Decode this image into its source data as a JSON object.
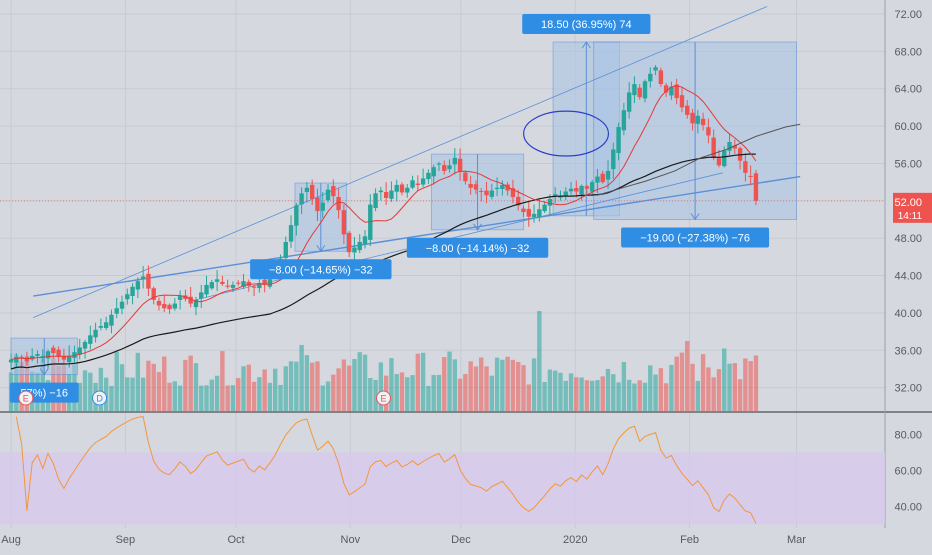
{
  "colors": {
    "background": "#d5d9df",
    "grid": "#c6cbd2",
    "up": "#26a69a",
    "down": "#ef5350",
    "ma_fast": "#e53935",
    "ma_slow": "#1a1a1a",
    "ma_long": "#555555",
    "trendline": "#5c8fd6",
    "measure_fill": "#a9c4e6",
    "label_blue": "#2f8de4",
    "rsi_line": "#f4963a",
    "rsi_band": "#d8c8ee",
    "price_tag": "#ef5350"
  },
  "chart_data": {
    "type": "candlestick",
    "price_axis": {
      "ticks": [
        "72.00",
        "68.00",
        "64.00",
        "60.00",
        "56.00",
        "52.00",
        "48.00",
        "44.00",
        "40.00",
        "36.00",
        "32.00"
      ],
      "range": [
        29.5,
        73.5
      ]
    },
    "rsi_axis": {
      "ticks": [
        "80.00",
        "60.00",
        "40.00"
      ],
      "range": [
        28,
        92
      ],
      "band": [
        30,
        70
      ]
    },
    "time_axis": {
      "labels": [
        "Aug",
        "Sep",
        "Oct",
        "Nov",
        "Dec",
        "2020",
        "Feb",
        "Mar"
      ],
      "label_days": [
        0,
        31,
        61,
        92,
        122,
        153,
        184,
        213
      ],
      "range": [
        -3,
        237
      ]
    },
    "last_price": {
      "value": "52.00",
      "countdown": "14:11"
    },
    "candles_daily_closes": [
      35.0,
      35.3,
      35.2,
      34.8,
      35.4,
      35.6,
      35.4,
      35.9,
      35.7,
      35.3,
      35.0,
      35.4,
      35.8,
      36.3,
      36.9,
      37.6,
      38.2,
      38.6,
      39.0,
      39.8,
      40.5,
      41.2,
      42.0,
      42.8,
      43.4,
      43.9,
      42.6,
      41.4,
      40.8,
      40.5,
      40.4,
      41.0,
      41.8,
      41.5,
      41.0,
      41.4,
      42.2,
      43.0,
      43.3,
      43.6,
      43.1,
      42.8,
      43.0,
      43.2,
      43.4,
      42.9,
      42.7,
      43.2,
      43.0,
      43.6,
      44.4,
      45.8,
      47.6,
      49.4,
      51.5,
      52.8,
      53.4,
      52.2,
      50.9,
      51.8,
      53.2,
      52.5,
      51.0,
      48.4,
      46.5,
      47.0,
      47.6,
      48.2,
      51.6,
      52.8,
      53.1,
      52.3,
      53.1,
      53.7,
      52.9,
      53.4,
      54.2,
      53.7,
      54.4,
      55.0,
      55.6,
      56.0,
      55.2,
      55.8,
      56.6,
      55.1,
      54.1,
      53.4,
      53.2,
      53.0,
      52.6,
      53.1,
      53.4,
      53.7,
      53.1,
      52.4,
      51.5,
      50.8,
      50.3,
      50.6,
      51.1,
      51.6,
      52.2,
      52.7,
      52.5,
      53.0,
      53.3,
      53.0,
      53.6,
      53.3,
      54.0,
      54.6,
      54.0,
      55.2,
      57.5,
      59.9,
      61.7,
      63.6,
      64.5,
      63.1,
      64.8,
      65.6,
      66.3,
      64.5,
      63.6,
      64.2,
      63.0,
      62.0,
      61.2,
      60.3,
      61.1,
      60.1,
      59.0,
      56.6,
      55.8,
      57.4,
      58.3,
      57.6,
      56.3,
      55.0,
      54.6,
      52.0
    ],
    "candles_start_day": 0,
    "moving_average_fast": {
      "period": 10
    },
    "moving_average_slow": {
      "period": 50
    },
    "moving_average_long": {
      "period": 200,
      "points": [
        [
          159,
          52.6
        ],
        [
          165,
          53.3
        ],
        [
          172,
          54.1
        ],
        [
          180,
          55.2
        ],
        [
          187,
          56.6
        ],
        [
          194,
          57.5
        ],
        [
          202,
          58.9
        ],
        [
          210,
          59.9
        ],
        [
          214,
          60.2
        ]
      ]
    },
    "volume_max_hint": 100,
    "trendlines": [
      {
        "from": [
          6,
          41.8
        ],
        "to": [
          214,
          54.6
        ],
        "style": "thick"
      },
      {
        "from": [
          6,
          39.5
        ],
        "to": [
          205,
          72.8
        ],
        "style": "thin"
      },
      {
        "from": [
          50,
          41.4
        ],
        "to": [
          193,
          55.0
        ],
        "style": "thin"
      }
    ],
    "measures": [
      {
        "x0": 0,
        "x1": 18,
        "y0": 33.4,
        "y1": 37.3,
        "direction": "down",
        "label": "57%) −16",
        "label_pos": "below"
      },
      {
        "x0": 77,
        "x1": 91,
        "y0": 46.6,
        "y1": 53.9,
        "direction": "down",
        "label": "−8.00 (−14.65%) −32",
        "label_pos": "below"
      },
      {
        "x0": 114,
        "x1": 139,
        "y0": 48.9,
        "y1": 57.0,
        "direction": "down",
        "label": "−8.00 (−14.14%) −32",
        "label_pos": "below"
      },
      {
        "x0": 147,
        "x1": 165,
        "y0": 50.4,
        "y1": 69.0,
        "direction": "up",
        "label": "18.50 (36.95%) 74",
        "label_pos": "above"
      },
      {
        "x0": 158,
        "x1": 213,
        "y0": 50.0,
        "y1": 69.0,
        "direction": "down",
        "label": "−19.00 (−27.38%) −76",
        "label_pos": "below"
      }
    ],
    "ellipse": {
      "cx": 150.5,
      "cy": 59.2,
      "rx": 11.5,
      "ry": 2.4
    },
    "event_markers": [
      {
        "day": 4,
        "letter": "E",
        "kind": "earnings"
      },
      {
        "day": 24,
        "letter": "D",
        "kind": "dividend"
      },
      {
        "day": 101,
        "letter": "E",
        "kind": "earnings"
      }
    ],
    "rsi_period": 14
  }
}
